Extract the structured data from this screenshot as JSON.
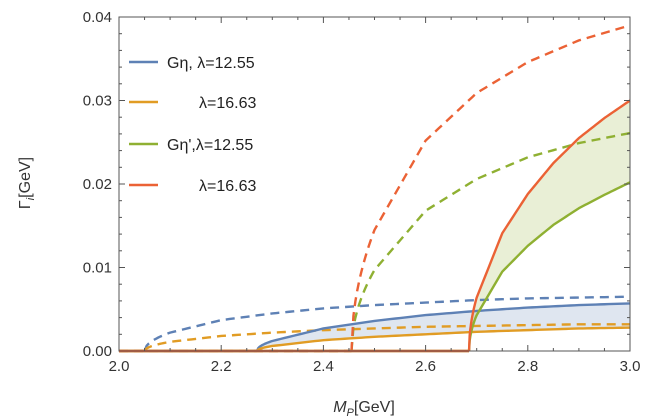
{
  "chart_data": {
    "type": "line",
    "xlabel_var": "M",
    "xlabel_sub": "P",
    "xlabel_unit": "[GeV]",
    "ylabel_var": "Γ",
    "ylabel_sub": "i",
    "ylabel_unit": "[GeV]",
    "xlim": [
      2.0,
      3.0
    ],
    "ylim": [
      0.0,
      0.04
    ],
    "xticks": [
      "2.0",
      "2.2",
      "2.4",
      "2.6",
      "2.8",
      "3.0"
    ],
    "yticks": [
      "0.00",
      "0.01",
      "0.02",
      "0.03",
      "0.04"
    ],
    "legend_position": "top-left",
    "legend": [
      {
        "label": "Gη, λ=12.55",
        "color": "#5E81B5"
      },
      {
        "label": "λ=16.63",
        "color": "#E19C24"
      },
      {
        "label": "Gη',λ=12.55",
        "color": "#8FB032"
      },
      {
        "label": "λ=16.63",
        "color": "#EB6235"
      }
    ],
    "series": [
      {
        "group": "eta",
        "color": "#5E81B5",
        "style": "solid",
        "threshold": 2.27,
        "x": [
          2.27,
          2.3,
          2.4,
          2.5,
          2.6,
          2.7,
          2.8,
          2.9,
          3.0
        ],
        "y": [
          0.0,
          0.0012,
          0.0027,
          0.0036,
          0.0043,
          0.0048,
          0.0052,
          0.0055,
          0.0057
        ]
      },
      {
        "group": "eta",
        "color": "#E19C24",
        "style": "solid",
        "threshold": 2.27,
        "x": [
          2.27,
          2.3,
          2.4,
          2.5,
          2.6,
          2.7,
          2.8,
          2.9,
          3.0
        ],
        "y": [
          0.0,
          0.0006,
          0.0013,
          0.0017,
          0.002,
          0.0023,
          0.0025,
          0.0027,
          0.0028
        ]
      },
      {
        "group": "eta",
        "color": "#5E81B5",
        "style": "dashed",
        "threshold": 2.05,
        "x": [
          2.05,
          2.1,
          2.2,
          2.3,
          2.4,
          2.5,
          2.6,
          2.7,
          2.8,
          2.9,
          3.0
        ],
        "y": [
          0.0,
          0.0022,
          0.0037,
          0.0045,
          0.0051,
          0.0055,
          0.0058,
          0.0061,
          0.0063,
          0.0064,
          0.0065
        ]
      },
      {
        "group": "eta",
        "color": "#E19C24",
        "style": "dashed",
        "threshold": 2.05,
        "x": [
          2.05,
          2.1,
          2.2,
          2.3,
          2.4,
          2.5,
          2.6,
          2.7,
          2.8,
          2.9,
          3.0
        ],
        "y": [
          0.0,
          0.0011,
          0.0018,
          0.0022,
          0.0025,
          0.0027,
          0.0029,
          0.003,
          0.0031,
          0.0032,
          0.0032
        ]
      },
      {
        "group": "etaprime",
        "color": "#8FB032",
        "style": "solid",
        "threshold": 2.685,
        "x": [
          2.685,
          2.7,
          2.75,
          2.8,
          2.85,
          2.9,
          2.95,
          3.0
        ],
        "y": [
          0.0,
          0.0043,
          0.0095,
          0.0126,
          0.0151,
          0.0171,
          0.0187,
          0.0202
        ]
      },
      {
        "group": "etaprime",
        "color": "#EB6235",
        "style": "solid",
        "threshold": 2.685,
        "x": [
          2.685,
          2.7,
          2.75,
          2.8,
          2.85,
          2.9,
          2.95,
          3.0
        ],
        "y": [
          0.0,
          0.0064,
          0.0141,
          0.0188,
          0.0225,
          0.0255,
          0.0279,
          0.03
        ]
      },
      {
        "group": "etaprime",
        "color": "#8FB032",
        "style": "dashed",
        "threshold": 2.455,
        "x": [
          2.455,
          2.5,
          2.6,
          2.7,
          2.8,
          2.9,
          3.0
        ],
        "y": [
          0.0,
          0.0097,
          0.0168,
          0.0206,
          0.0232,
          0.0249,
          0.0261
        ]
      },
      {
        "group": "etaprime",
        "color": "#EB6235",
        "style": "dashed",
        "threshold": 2.455,
        "x": [
          2.455,
          2.5,
          2.6,
          2.7,
          2.8,
          2.9,
          3.0
        ],
        "y": [
          0.0,
          0.0145,
          0.0252,
          0.0309,
          0.0346,
          0.0372,
          0.039
        ]
      }
    ],
    "bands": [
      {
        "between": [
          0,
          1
        ],
        "color": "#5E81B5",
        "opacity": 0.2
      },
      {
        "between": [
          4,
          5
        ],
        "color": "#8FB032",
        "opacity": 0.2
      }
    ]
  }
}
